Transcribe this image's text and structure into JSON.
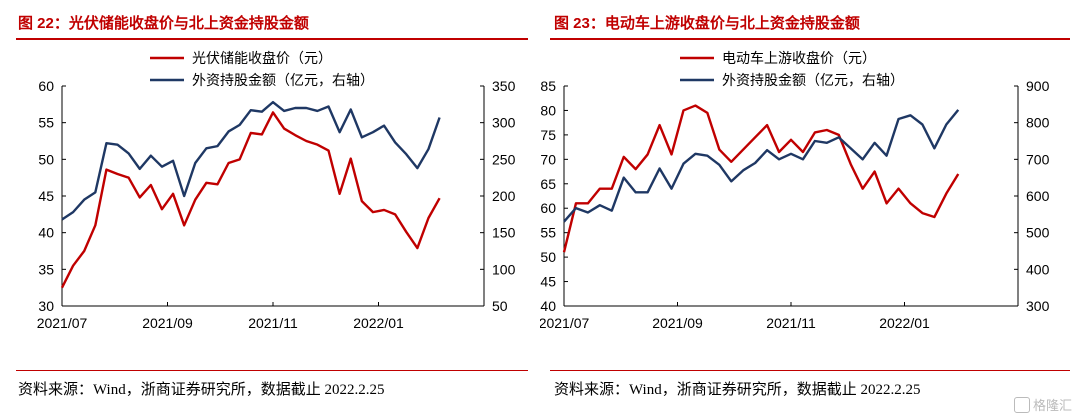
{
  "colors": {
    "red": "#c00000",
    "navy": "#1f3864",
    "axis": "#000000"
  },
  "watermark": {
    "icon": "gelonghui-logo-icon",
    "text": "格隆汇"
  },
  "chart_data": [
    {
      "type": "line",
      "title": "图 22：光伏储能收盘价与北上资金持股金额",
      "source": "资料来源：Wind，浙商证券研究所，数据截止 2022.2.25",
      "x_ticks": [
        "2021/07",
        "2021/09",
        "2021/11",
        "2022/01"
      ],
      "x_range": [
        0,
        38
      ],
      "x_tick_positions": [
        0,
        9.5,
        19,
        28.5
      ],
      "y_left": {
        "min": 30,
        "max": 60,
        "ticks": [
          30,
          35,
          40,
          45,
          50,
          55,
          60
        ]
      },
      "y_right": {
        "min": 50,
        "max": 350,
        "ticks": [
          50,
          100,
          150,
          200,
          250,
          300,
          350
        ]
      },
      "legend": "top-center",
      "series": [
        {
          "name": "光伏储能收盘价（元）",
          "axis": "left",
          "color": "#c00000",
          "values": [
            32.5,
            35.5,
            37.5,
            41,
            48.6,
            48,
            47.5,
            44.8,
            46.5,
            43.2,
            45.3,
            41,
            44.5,
            46.8,
            46.6,
            49.5,
            50,
            53.6,
            53.4,
            56.4,
            54.2,
            53.3,
            52.5,
            52,
            51.2,
            45.3,
            50.1,
            44.3,
            42.8,
            43.1,
            42.5,
            40.1,
            37.9,
            42,
            44.7
          ]
        },
        {
          "name": "外资持股金额（亿元，右轴）",
          "axis": "right",
          "color": "#1f3864",
          "values": [
            168,
            178,
            195,
            205,
            272,
            270,
            258,
            237,
            255,
            240,
            248,
            200,
            245,
            265,
            268,
            288,
            297,
            317,
            315,
            328,
            316,
            320,
            320,
            316,
            322,
            287,
            318,
            280,
            287,
            296,
            273,
            257,
            238,
            264,
            307
          ]
        }
      ]
    },
    {
      "type": "line",
      "title": "图 23：电动车上游收盘价与北上资金持股金额",
      "source": "资料来源：Wind，浙商证券研究所，数据截止 2022.2.25",
      "x_ticks": [
        "2021/07",
        "2021/09",
        "2021/11",
        "2022/01"
      ],
      "x_range": [
        0,
        38
      ],
      "x_tick_positions": [
        0,
        9.5,
        19,
        28.5
      ],
      "y_left": {
        "min": 40,
        "max": 85,
        "ticks": [
          40,
          45,
          50,
          55,
          60,
          65,
          70,
          75,
          80,
          85
        ]
      },
      "y_right": {
        "min": 300,
        "max": 900,
        "ticks": [
          300,
          400,
          500,
          600,
          700,
          800,
          900
        ]
      },
      "legend": "top-center",
      "series": [
        {
          "name": "电动车上游收盘价（元）",
          "axis": "left",
          "color": "#c00000",
          "values": [
            51,
            61,
            61,
            64,
            64,
            70.5,
            68,
            71,
            77,
            71,
            80,
            81,
            79.5,
            72,
            69.5,
            72,
            74.5,
            77,
            71.5,
            74,
            71.5,
            75.5,
            76,
            75,
            69,
            64,
            67.5,
            61,
            64,
            61,
            59,
            58.2,
            63,
            67
          ]
        },
        {
          "name": "外资持股金额（亿元，右轴）",
          "axis": "right",
          "color": "#1f3864",
          "values": [
            530,
            567,
            555,
            575,
            560,
            650,
            610,
            610,
            675,
            620,
            688,
            715,
            710,
            685,
            640,
            670,
            690,
            725,
            700,
            715,
            700,
            750,
            745,
            760,
            730,
            700,
            745,
            710,
            810,
            820,
            795,
            730,
            795,
            835
          ]
        }
      ]
    }
  ]
}
